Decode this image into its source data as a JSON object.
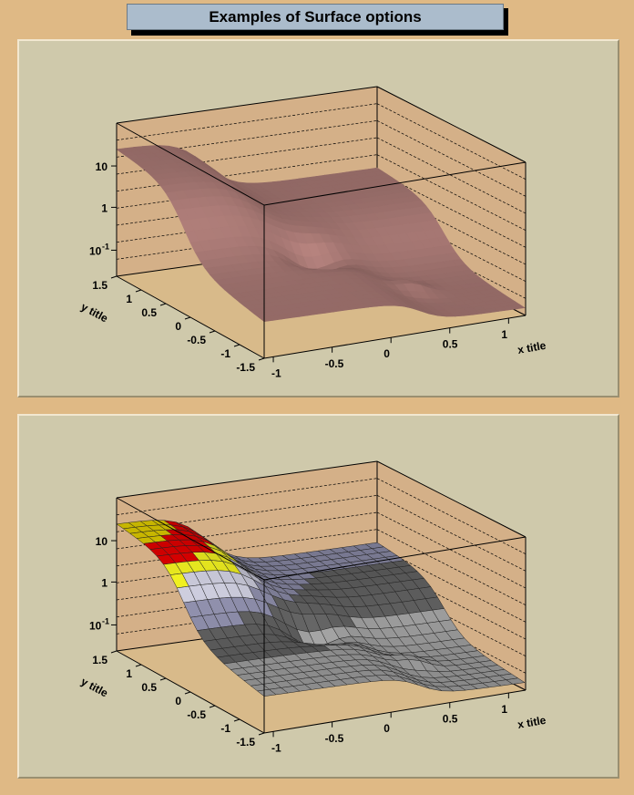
{
  "title": "Examples of Surface options",
  "chart_data": [
    {
      "type": "surface",
      "option": "smooth surface",
      "surface_color": "#c08a85",
      "xlabel": "x title",
      "ylabel": "y title",
      "x_ticks": [
        "-1",
        "-0.5",
        "0",
        "0.5",
        "1"
      ],
      "y_ticks": [
        "-1.5",
        "-1",
        "-0.5",
        "0",
        "0.5",
        "1",
        "1.5"
      ],
      "z_ticks": [
        "10",
        "1",
        "10-1"
      ],
      "z_scale": "log"
    },
    {
      "type": "surface",
      "option": "meshed surface with color bands",
      "band_colors": [
        "#00c800",
        "#e6d200",
        "#e60000",
        "#f0f020",
        "#c8c8d8",
        "#8c8ca8",
        "#606060",
        "#a0a0a0"
      ],
      "xlabel": "x title",
      "ylabel": "y title",
      "x_ticks": [
        "-1",
        "-0.5",
        "0",
        "0.5",
        "1"
      ],
      "y_ticks": [
        "-1.5",
        "-1",
        "-0.5",
        "0",
        "0.5",
        "1",
        "1.5"
      ],
      "z_ticks": [
        "10",
        "1",
        "10-1"
      ],
      "z_scale": "log"
    }
  ]
}
